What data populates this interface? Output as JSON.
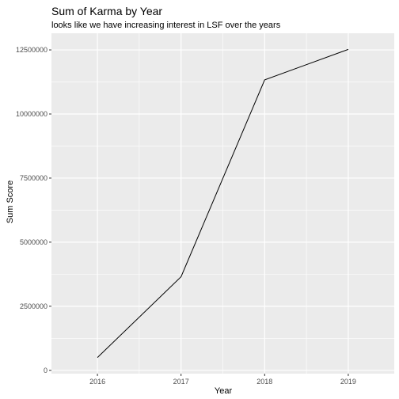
{
  "chart_data": {
    "type": "line",
    "title": "Sum of Karma by Year",
    "subtitle": "looks like we have increasing interest in LSF over the years",
    "xlabel": "Year",
    "ylabel": "Sum Score",
    "x": [
      2016,
      2017,
      2018,
      2019
    ],
    "y": [
      500000,
      3650000,
      11330000,
      12520000
    ],
    "x_ticks": [
      "2016",
      "2017",
      "2018",
      "2019"
    ],
    "y_ticks": [
      0,
      2500000,
      5000000,
      7500000,
      10000000,
      12500000
    ],
    "y_tick_labels": [
      "0",
      "2500000",
      "5000000",
      "7500000",
      "10000000",
      "12500000"
    ],
    "xlim": [
      2015.45,
      2019.55
    ],
    "ylim": [
      -130000,
      13150000
    ],
    "grid": true,
    "line_color": "#000000",
    "panel_color": "#ebebeb",
    "grid_color": "#ffffff"
  }
}
